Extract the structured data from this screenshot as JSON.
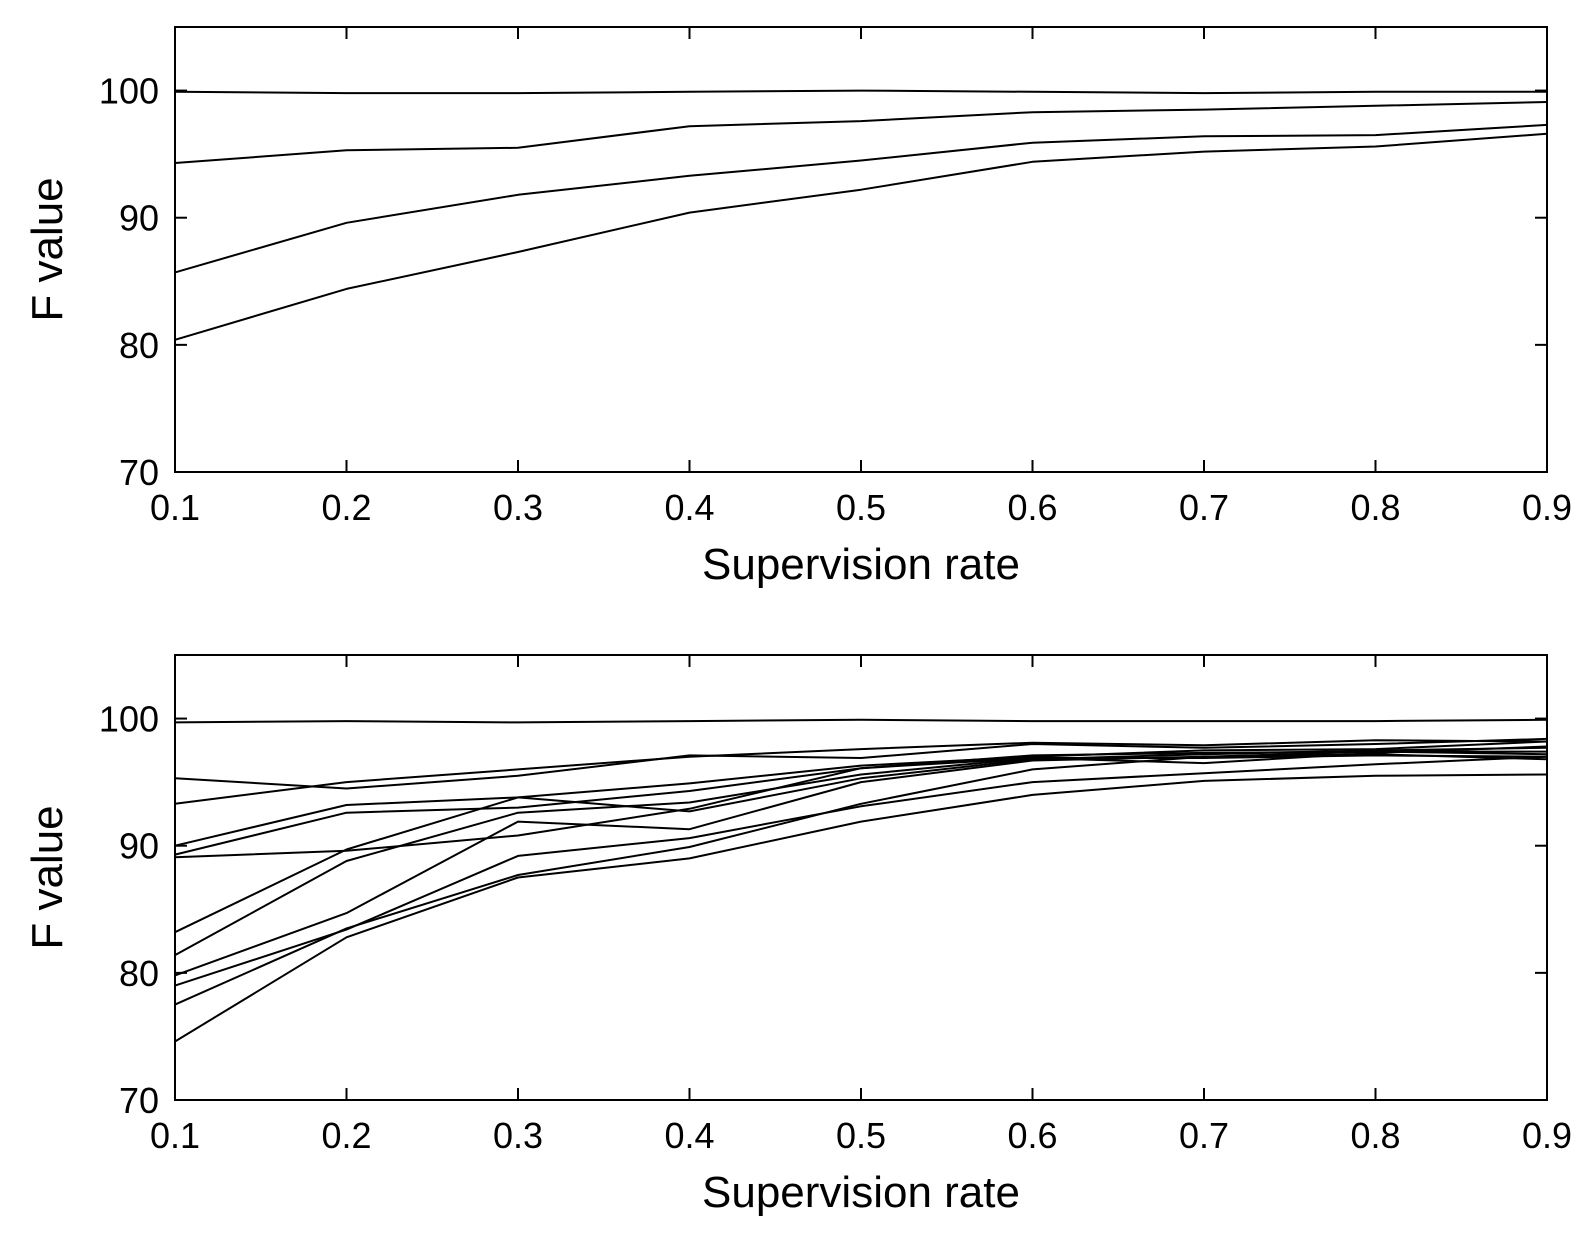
{
  "chart_data": [
    {
      "type": "line",
      "title": "",
      "xlabel": "Supervision rate",
      "ylabel": "F value",
      "x": [
        0.1,
        0.2,
        0.3,
        0.4,
        0.5,
        0.6,
        0.7,
        0.8,
        0.9
      ],
      "x_tick_labels": [
        "0.1",
        "0.2",
        "0.3",
        "0.4",
        "0.5",
        "0.6",
        "0.7",
        "0.8",
        "0.9"
      ],
      "y_tick_labels": [
        "70",
        "80",
        "90",
        "100"
      ],
      "xlim": [
        0.1,
        0.9
      ],
      "ylim": [
        70,
        105
      ],
      "y_ticks": [
        70,
        80,
        90,
        100
      ],
      "grid": false,
      "color": "#000000",
      "series": [
        {
          "name": "",
          "values": [
            99.9,
            99.8,
            99.8,
            99.9,
            100.0,
            99.9,
            99.8,
            99.9,
            99.9
          ]
        },
        {
          "name": "",
          "values": [
            94.3,
            95.3,
            95.5,
            97.2,
            97.6,
            98.3,
            98.5,
            98.8,
            99.1
          ]
        },
        {
          "name": "",
          "values": [
            85.7,
            89.6,
            91.8,
            93.3,
            94.5,
            95.9,
            96.4,
            96.5,
            97.3
          ]
        },
        {
          "name": "",
          "values": [
            80.4,
            84.4,
            87.3,
            90.4,
            92.2,
            94.4,
            95.2,
            95.6,
            96.6
          ]
        }
      ]
    },
    {
      "type": "line",
      "title": "",
      "xlabel": "Supervision rate",
      "ylabel": "F value",
      "x": [
        0.1,
        0.2,
        0.3,
        0.4,
        0.5,
        0.6,
        0.7,
        0.8,
        0.9
      ],
      "x_tick_labels": [
        "0.1",
        "0.2",
        "0.3",
        "0.4",
        "0.5",
        "0.6",
        "0.7",
        "0.8",
        "0.9"
      ],
      "y_tick_labels": [
        "70",
        "80",
        "90",
        "100"
      ],
      "xlim": [
        0.1,
        0.9
      ],
      "ylim": [
        70,
        105
      ],
      "y_ticks": [
        70,
        80,
        90,
        100
      ],
      "grid": false,
      "color": "#000000",
      "series": [
        {
          "name": "",
          "values": [
            99.7,
            99.8,
            99.7,
            99.8,
            99.9,
            99.8,
            99.8,
            99.8,
            99.9
          ]
        },
        {
          "name": "",
          "values": [
            95.3,
            94.5,
            95.5,
            97.1,
            96.9,
            98.0,
            97.7,
            98.0,
            98.4
          ]
        },
        {
          "name": "",
          "values": [
            93.3,
            95.0,
            96.0,
            97.0,
            97.6,
            98.1,
            97.9,
            98.3,
            98.2
          ]
        },
        {
          "name": "",
          "values": [
            90.0,
            93.2,
            93.8,
            94.9,
            96.3,
            97.0,
            97.5,
            97.6,
            98.2
          ]
        },
        {
          "name": "",
          "values": [
            89.3,
            92.6,
            93.0,
            94.3,
            96.1,
            96.9,
            96.5,
            97.3,
            97.8
          ]
        },
        {
          "name": "",
          "values": [
            89.1,
            89.6,
            90.8,
            92.9,
            96.1,
            97.1,
            97.3,
            97.4,
            97.4
          ]
        },
        {
          "name": "",
          "values": [
            83.2,
            89.7,
            93.8,
            92.7,
            95.3,
            96.8,
            97.2,
            97.5,
            97.7
          ]
        },
        {
          "name": "",
          "values": [
            81.4,
            88.8,
            92.6,
            93.4,
            95.6,
            96.9,
            96.9,
            97.1,
            97.0
          ]
        },
        {
          "name": "",
          "values": [
            79.8,
            84.7,
            91.9,
            91.3,
            95.0,
            96.7,
            97.0,
            97.4,
            97.2
          ]
        },
        {
          "name": "",
          "values": [
            79.0,
            83.4,
            89.2,
            90.6,
            93.1,
            95.0,
            95.7,
            96.4,
            97.0
          ]
        },
        {
          "name": "",
          "values": [
            77.5,
            83.5,
            87.7,
            89.9,
            93.3,
            96.0,
            97.0,
            97.2,
            96.8
          ]
        },
        {
          "name": "",
          "values": [
            74.6,
            82.8,
            87.5,
            89.0,
            91.9,
            94.0,
            95.1,
            95.5,
            95.6
          ]
        }
      ]
    }
  ]
}
